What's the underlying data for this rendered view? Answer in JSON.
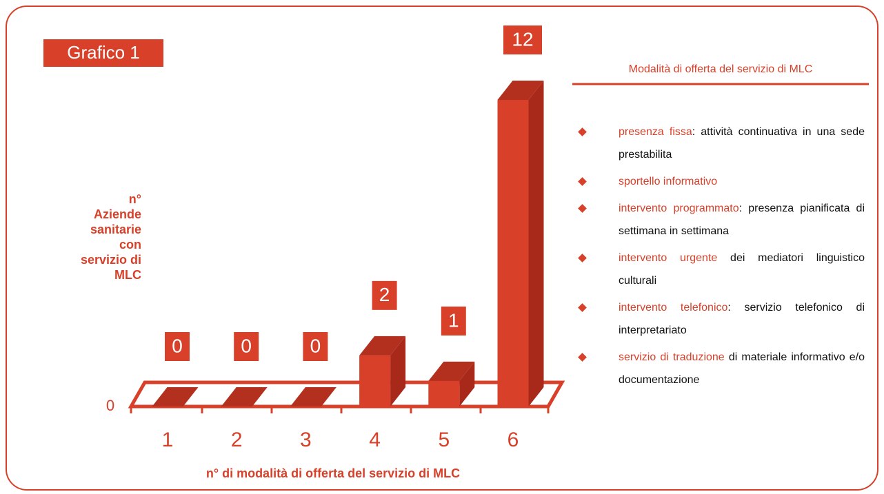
{
  "chart_data": {
    "type": "bar3d",
    "title": "Grafico 1",
    "y_label": "n° Aziende sanitarie con servizio di MLC",
    "x_label": "n° di modalità di offerta del servizio di MLC",
    "categories": [
      "1",
      "2",
      "3",
      "4",
      "5",
      "6"
    ],
    "values": [
      0,
      0,
      0,
      2,
      1,
      12
    ],
    "color": "#d8402a",
    "ylim": [
      0,
      12
    ],
    "yticks": [
      0
    ]
  },
  "panel": {
    "title": "Modalità di offerta del servizio di MLC",
    "items": [
      {
        "term": "presenza fissa",
        "text": ": attività continuativa in una sede prestabilita"
      },
      {
        "term": "sportello informativo"
      },
      {
        "term": "intervento programmato",
        "text": ": presenza pianificata di settimana in settimana"
      },
      {
        "term": "intervento urgente",
        "text": " dei mediatori linguistico culturali"
      },
      {
        "term": "intervento telefonico",
        "text": ": servizio telefonico di interpretariato"
      },
      {
        "term": "servizio di traduzione",
        "text": " di materiale informativo e/o documentazione"
      }
    ]
  }
}
